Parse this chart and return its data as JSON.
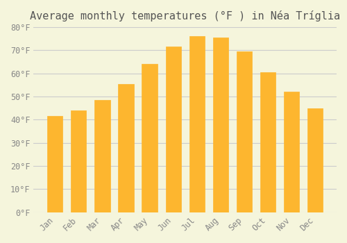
{
  "title": "Average monthly temperatures (°F ) in Néa Tríglia",
  "months": [
    "Jan",
    "Feb",
    "Mar",
    "Apr",
    "May",
    "Jun",
    "Jul",
    "Aug",
    "Sep",
    "Oct",
    "Nov",
    "Dec"
  ],
  "values": [
    41.5,
    44.0,
    48.5,
    55.5,
    64.0,
    71.5,
    76.0,
    75.5,
    69.5,
    60.5,
    52.0,
    45.0
  ],
  "bar_color": "#FDB62F",
  "bar_edge_color": "#FDB62F",
  "ylim": [
    0,
    80
  ],
  "yticks": [
    0,
    10,
    20,
    30,
    40,
    50,
    60,
    70,
    80
  ],
  "ytick_labels": [
    "0°F",
    "10°F",
    "20°F",
    "30°F",
    "40°F",
    "50°F",
    "60°F",
    "70°F",
    "80°F"
  ],
  "background_color": "#F5F5DC",
  "grid_color": "#CCCCCC",
  "title_fontsize": 11,
  "tick_fontsize": 8.5,
  "bar_width": 0.65
}
